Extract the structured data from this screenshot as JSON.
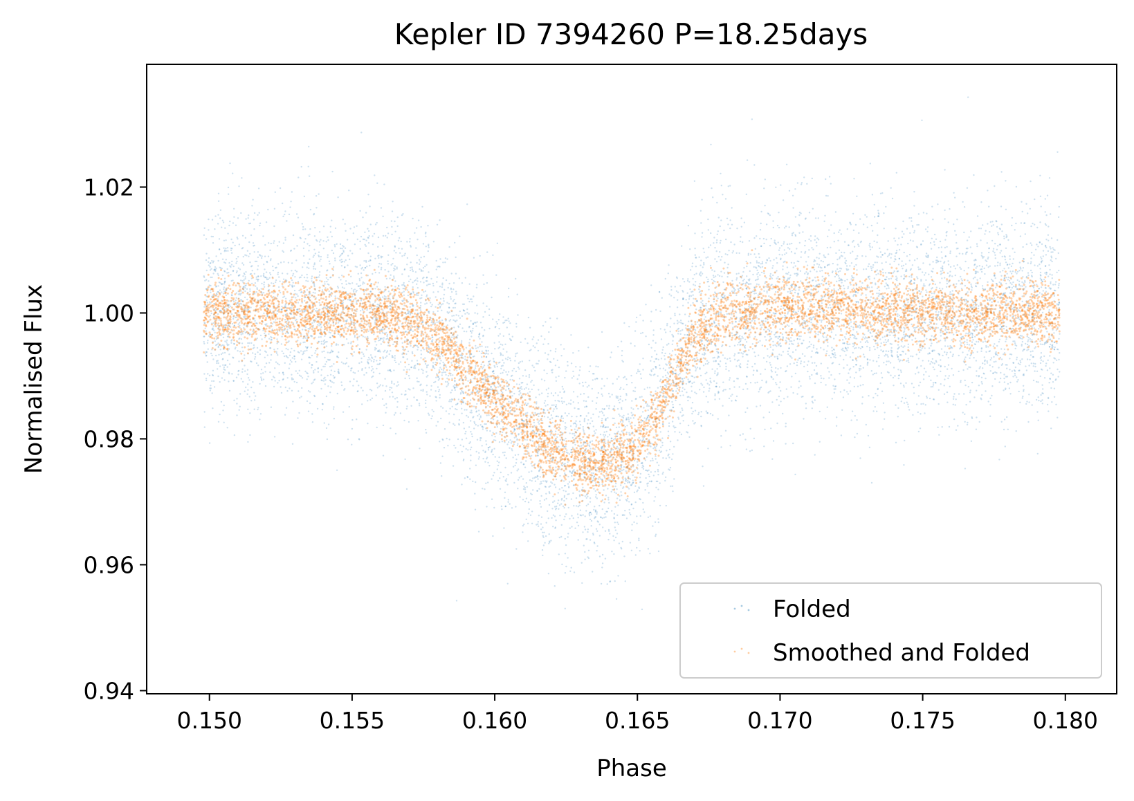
{
  "chart_data": {
    "type": "scatter",
    "title": "Kepler ID 7394260 P=18.25days",
    "xlabel": "Phase",
    "ylabel": "Normalised Flux",
    "xlim": [
      0.1478,
      0.1818
    ],
    "ylim": [
      0.9395,
      1.0395
    ],
    "x_ticks": [
      0.15,
      0.155,
      0.16,
      0.165,
      0.17,
      0.175,
      0.18
    ],
    "x_tick_labels": [
      "0.150",
      "0.155",
      "0.160",
      "0.165",
      "0.170",
      "0.175",
      "0.180"
    ],
    "y_ticks": [
      0.94,
      0.96,
      0.98,
      1.0,
      1.02
    ],
    "y_tick_labels": [
      "0.94",
      "0.96",
      "0.98",
      "1.00",
      "1.02"
    ],
    "grid": false,
    "legend_position": "lower-right",
    "series": [
      {
        "name": "Folded",
        "color": "#1f77b4",
        "x_range": [
          0.1498,
          0.1798
        ],
        "trend": {
          "x": [
            0.15,
            0.152,
            0.154,
            0.156,
            0.157,
            0.158,
            0.159,
            0.16,
            0.161,
            0.162,
            0.163,
            0.164,
            0.165,
            0.166,
            0.1668,
            0.168,
            0.17,
            0.175,
            0.18
          ],
          "y": [
            1.0,
            1.0,
            1.0,
            1.0,
            0.999,
            0.996,
            0.991,
            0.986,
            0.982,
            0.978,
            0.976,
            0.976,
            0.979,
            0.986,
            0.995,
            1.0,
            1.001,
            1.0,
            1.0
          ]
        },
        "scatter_std": 0.008
      },
      {
        "name": "Smoothed and Folded",
        "color": "#ff7f0e",
        "x_range": [
          0.1498,
          0.1798
        ],
        "trend": {
          "x": [
            0.15,
            0.152,
            0.154,
            0.156,
            0.157,
            0.158,
            0.159,
            0.16,
            0.161,
            0.162,
            0.163,
            0.164,
            0.165,
            0.166,
            0.1668,
            0.168,
            0.17,
            0.175,
            0.18
          ],
          "y": [
            1.0,
            1.0,
            1.0,
            1.0,
            0.999,
            0.996,
            0.991,
            0.986,
            0.982,
            0.978,
            0.976,
            0.976,
            0.979,
            0.986,
            0.995,
            1.0,
            1.001,
            1.0,
            1.0
          ]
        },
        "scatter_std": 0.0025
      }
    ]
  }
}
